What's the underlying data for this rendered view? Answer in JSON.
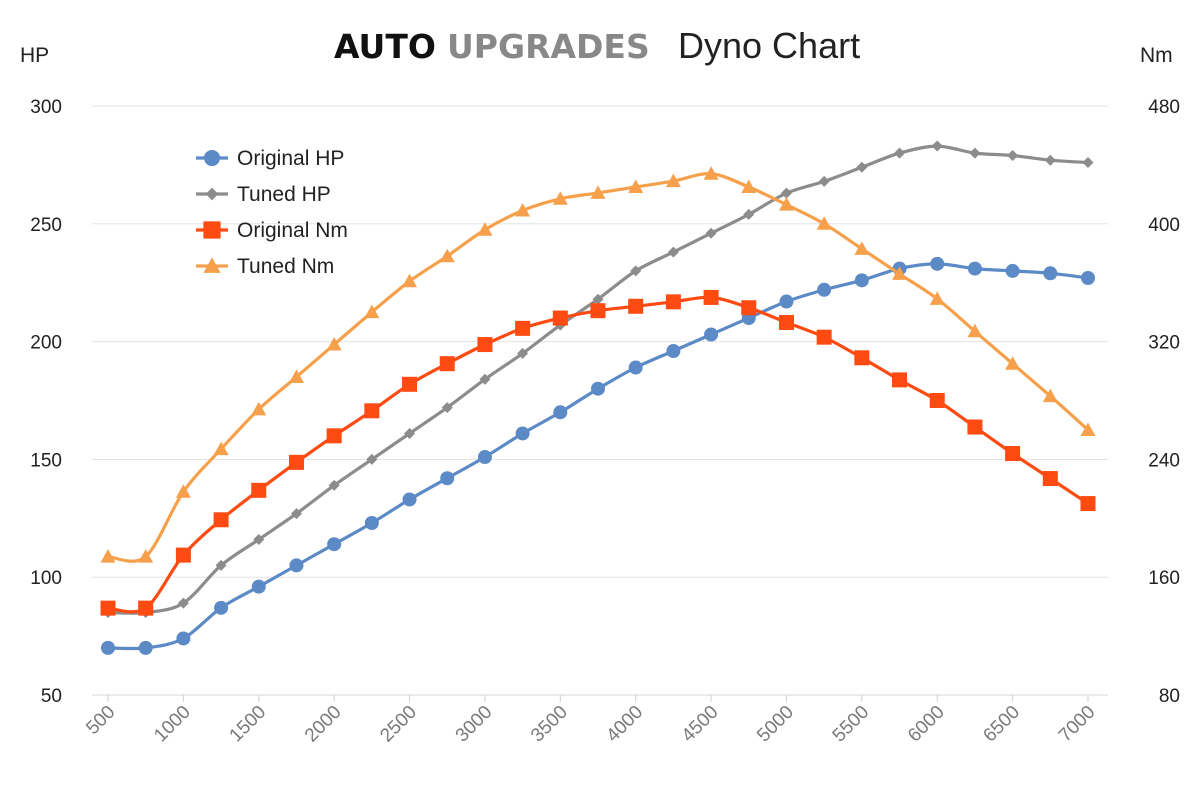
{
  "header": {
    "brand_part1": "AUTO",
    "brand_part2": "UPGRADES",
    "title": "Dyno Chart"
  },
  "chart_data": {
    "type": "line",
    "title": "Dyno Chart",
    "ylabel_left": "HP",
    "ylabel_right": "Nm",
    "x": [
      500,
      750,
      1000,
      1250,
      1500,
      1750,
      2000,
      2250,
      2500,
      2750,
      3000,
      3250,
      3500,
      3750,
      4000,
      4250,
      4500,
      4750,
      5000,
      5250,
      5500,
      5750,
      6000,
      6250,
      6500,
      6750,
      7000
    ],
    "x_tick_labels": [
      "500",
      "1000",
      "1500",
      "2000",
      "2500",
      "3000",
      "3500",
      "4000",
      "4500",
      "5000",
      "5500",
      "6000",
      "6500",
      "7000"
    ],
    "x_tick_values": [
      500,
      1000,
      1500,
      2000,
      2500,
      3000,
      3500,
      4000,
      4500,
      5000,
      5500,
      6000,
      6500,
      7000
    ],
    "xlim": [
      500,
      7000
    ],
    "ylim_left": [
      50,
      300
    ],
    "yticks_left": [
      "300",
      "250",
      "200",
      "150",
      "100",
      "50"
    ],
    "yticks_left_values": [
      300,
      250,
      200,
      150,
      100,
      50
    ],
    "ylim_right": [
      80,
      480
    ],
    "yticks_right": [
      "480",
      "400",
      "320",
      "240",
      "160",
      "80"
    ],
    "yticks_right_values": [
      480,
      400,
      320,
      240,
      160,
      80
    ],
    "grid": true,
    "legend_position": "top-left",
    "series": [
      {
        "name": "Original HP",
        "axis": "left",
        "color": "#5b8ac6",
        "marker": "circle",
        "values": [
          70,
          70,
          74,
          87,
          96,
          105,
          114,
          123,
          133,
          142,
          151,
          161,
          170,
          180,
          189,
          196,
          203,
          210,
          217,
          222,
          226,
          231,
          233,
          231,
          230,
          229,
          227
        ]
      },
      {
        "name": "Tuned HP",
        "axis": "left",
        "color": "#8c8c8c",
        "marker": "diamond",
        "values": [
          85,
          85,
          89,
          105,
          116,
          127,
          139,
          150,
          161,
          172,
          184,
          195,
          207,
          218,
          230,
          238,
          246,
          254,
          263,
          268,
          274,
          280,
          283,
          280,
          279,
          277,
          276
        ]
      },
      {
        "name": "Original Nm",
        "axis": "right",
        "color": "#ff4a12",
        "marker": "square",
        "values": [
          139,
          139,
          175,
          199,
          219,
          238,
          256,
          273,
          291,
          305,
          318,
          329,
          336,
          341,
          344,
          347,
          350,
          343,
          333,
          323,
          309,
          294,
          280,
          262,
          244,
          227,
          210
        ]
      },
      {
        "name": "Tuned Nm",
        "axis": "right",
        "color": "#f7a04b",
        "marker": "triangle",
        "values": [
          174,
          174,
          218,
          247,
          274,
          296,
          318,
          340,
          361,
          378,
          396,
          409,
          417,
          421,
          425,
          429,
          434,
          425,
          413,
          400,
          383,
          366,
          349,
          327,
          305,
          283,
          260
        ]
      }
    ]
  }
}
